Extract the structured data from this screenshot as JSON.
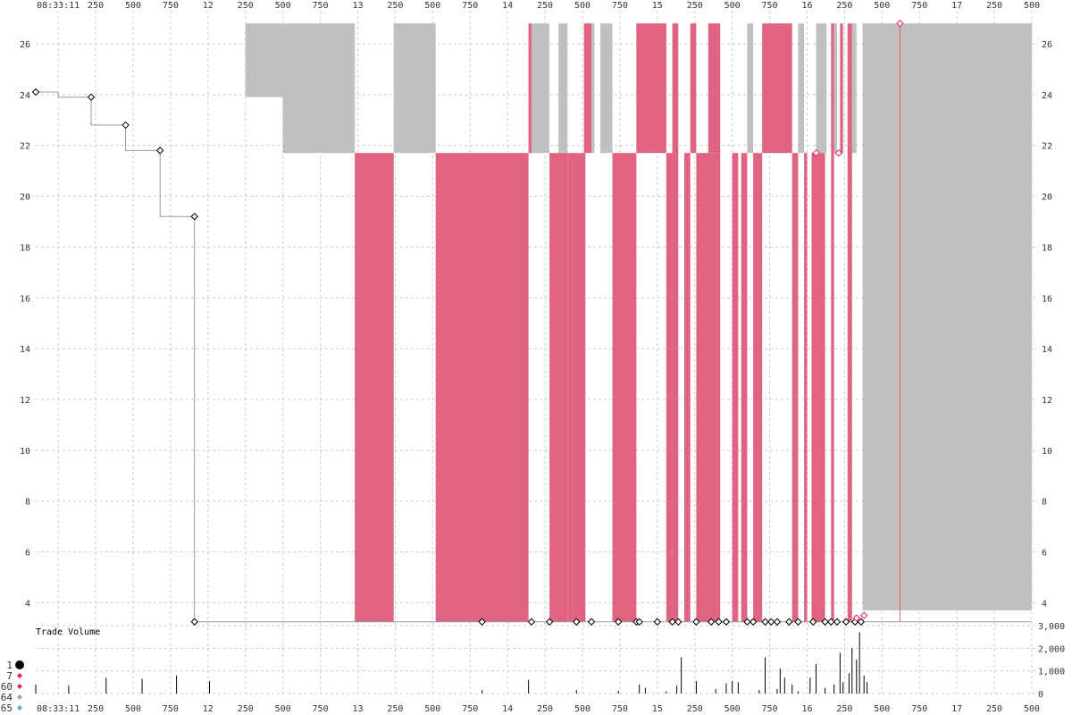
{
  "chart_data": {
    "type": "area",
    "colors": {
      "sell": "#e06382",
      "buy": "#c0c0c0",
      "trade_line": "#999999",
      "grid": "#cccccc"
    },
    "x_axis": {
      "start_label": "08:33:11",
      "ticks": [
        {
          "x": 0,
          "label": "08:33:11"
        },
        {
          "x": 250,
          "label": "250"
        },
        {
          "x": 500,
          "label": "500"
        },
        {
          "x": 750,
          "label": "750"
        },
        {
          "x": 1000,
          "label": "12"
        },
        {
          "x": 1250,
          "label": "250"
        },
        {
          "x": 1500,
          "label": "500"
        },
        {
          "x": 1750,
          "label": "750"
        },
        {
          "x": 2000,
          "label": "13"
        },
        {
          "x": 2250,
          "label": "250"
        },
        {
          "x": 2500,
          "label": "500"
        },
        {
          "x": 2750,
          "label": "750"
        },
        {
          "x": 3000,
          "label": "14"
        },
        {
          "x": 3250,
          "label": "250"
        },
        {
          "x": 3500,
          "label": "500"
        },
        {
          "x": 3750,
          "label": "750"
        },
        {
          "x": 4000,
          "label": "15"
        },
        {
          "x": 4250,
          "label": "250"
        },
        {
          "x": 4500,
          "label": "500"
        },
        {
          "x": 4750,
          "label": "750"
        },
        {
          "x": 5000,
          "label": "16"
        },
        {
          "x": 5250,
          "label": "250"
        },
        {
          "x": 5500,
          "label": "500"
        },
        {
          "x": 5750,
          "label": "750"
        },
        {
          "x": 6000,
          "label": "17"
        },
        {
          "x": 6250,
          "label": "250"
        },
        {
          "x": 6500,
          "label": "500"
        }
      ],
      "range": [
        -150,
        6530
      ]
    },
    "y_axis": {
      "ticks": [
        {
          "y": 4,
          "label": "4"
        },
        {
          "y": 6,
          "label": "6"
        },
        {
          "y": 8,
          "label": "8"
        },
        {
          "y": 10,
          "label": "10"
        },
        {
          "y": 12,
          "label": "12"
        },
        {
          "y": 14,
          "label": "14"
        },
        {
          "y": 16,
          "label": "16"
        },
        {
          "y": 18,
          "label": "18"
        },
        {
          "y": 20,
          "label": "20"
        },
        {
          "y": 22,
          "label": "22"
        },
        {
          "y": 24,
          "label": "24"
        },
        {
          "y": 26,
          "label": "26"
        }
      ],
      "range": [
        3.1,
        27.3
      ]
    },
    "volume_axis": {
      "title": "Trade Volume",
      "ticks": [
        {
          "v": 0,
          "label": "0"
        },
        {
          "v": 1000,
          "label": "1,000"
        },
        {
          "v": 2000,
          "label": "2,000"
        },
        {
          "v": 3000,
          "label": "3,000"
        }
      ],
      "range": [
        0,
        3000
      ]
    },
    "buy_bands": [
      {
        "x0": 1250,
        "x1": 1500,
        "y0": 23.9,
        "y1": 26.8
      },
      {
        "x0": 1500,
        "x1": 1980,
        "y0": 21.7,
        "y1": 26.8
      },
      {
        "x0": 2240,
        "x1": 2520,
        "y0": 21.7,
        "y1": 26.8
      },
      {
        "x0": 3140,
        "x1": 3280,
        "y0": 21.7,
        "y1": 26.8
      },
      {
        "x0": 3340,
        "x1": 3400,
        "y0": 21.7,
        "y1": 26.8
      },
      {
        "x0": 3560,
        "x1": 3580,
        "y0": 21.7,
        "y1": 26.8
      },
      {
        "x0": 3620,
        "x1": 3700,
        "y0": 21.7,
        "y1": 26.8
      },
      {
        "x0": 4020,
        "x1": 4060,
        "y0": 21.7,
        "y1": 26.8
      },
      {
        "x0": 4600,
        "x1": 4640,
        "y0": 21.7,
        "y1": 26.8
      },
      {
        "x0": 4940,
        "x1": 4980,
        "y0": 21.7,
        "y1": 26.8
      },
      {
        "x0": 5060,
        "x1": 5130,
        "y0": 21.7,
        "y1": 26.8
      },
      {
        "x0": 5180,
        "x1": 5200,
        "y0": 21.7,
        "y1": 26.8
      },
      {
        "x0": 5300,
        "x1": 5330,
        "y0": 21.7,
        "y1": 26.8
      },
      {
        "x0": 5370,
        "x1": 6500,
        "y0": 3.7,
        "y1": 26.8
      }
    ],
    "sell_bands": [
      {
        "x0": 1980,
        "x1": 2240,
        "y0": 3.25,
        "y1": 21.7
      },
      {
        "x0": 2520,
        "x1": 3140,
        "y0": 3.25,
        "y1": 21.7
      },
      {
        "x0": 3140,
        "x1": 3160,
        "y0": 21.7,
        "y1": 26.8
      },
      {
        "x0": 3280,
        "x1": 3400,
        "y0": 3.25,
        "y1": 21.7
      },
      {
        "x0": 3400,
        "x1": 3520,
        "y0": 3.25,
        "y1": 21.7
      },
      {
        "x0": 3510,
        "x1": 3560,
        "y0": 21.7,
        "y1": 26.8
      },
      {
        "x0": 3700,
        "x1": 3860,
        "y0": 3.25,
        "y1": 21.7
      },
      {
        "x0": 3860,
        "x1": 4060,
        "y0": 21.7,
        "y1": 26.8
      },
      {
        "x0": 4060,
        "x1": 4100,
        "y0": 3.25,
        "y1": 21.7
      },
      {
        "x0": 4100,
        "x1": 4140,
        "y0": 3.25,
        "y1": 26.8
      },
      {
        "x0": 4180,
        "x1": 4220,
        "y0": 3.25,
        "y1": 21.7
      },
      {
        "x0": 4220,
        "x1": 4260,
        "y0": 21.7,
        "y1": 26.8
      },
      {
        "x0": 4260,
        "x1": 4420,
        "y0": 3.25,
        "y1": 21.7
      },
      {
        "x0": 4340,
        "x1": 4420,
        "y0": 21.7,
        "y1": 26.8
      },
      {
        "x0": 4500,
        "x1": 4540,
        "y0": 3.25,
        "y1": 21.7
      },
      {
        "x0": 4560,
        "x1": 4600,
        "y0": 3.25,
        "y1": 21.7
      },
      {
        "x0": 4640,
        "x1": 4700,
        "y0": 3.25,
        "y1": 21.7
      },
      {
        "x0": 4700,
        "x1": 4900,
        "y0": 21.7,
        "y1": 26.8
      },
      {
        "x0": 4900,
        "x1": 4940,
        "y0": 3.25,
        "y1": 21.7
      },
      {
        "x0": 4980,
        "x1": 5000,
        "y0": 3.25,
        "y1": 21.7
      },
      {
        "x0": 5030,
        "x1": 5120,
        "y0": 3.25,
        "y1": 21.7
      },
      {
        "x0": 5160,
        "x1": 5180,
        "y0": 3.25,
        "y1": 26.8
      },
      {
        "x0": 5220,
        "x1": 5240,
        "y0": 21.7,
        "y1": 26.8
      },
      {
        "x0": 5270,
        "x1": 5300,
        "y0": 3.25,
        "y1": 26.8
      }
    ],
    "trade_line": [
      {
        "x": -150,
        "y": 24.1
      },
      {
        "x": 0,
        "y": 24.1
      },
      {
        "x": 0,
        "y": 23.9
      },
      {
        "x": 220,
        "y": 23.9
      },
      {
        "x": 220,
        "y": 22.8
      },
      {
        "x": 450,
        "y": 22.8
      },
      {
        "x": 450,
        "y": 21.8
      },
      {
        "x": 680,
        "y": 21.8
      },
      {
        "x": 680,
        "y": 19.2
      },
      {
        "x": 910,
        "y": 19.2
      },
      {
        "x": 910,
        "y": 3.25
      },
      {
        "x": 6500,
        "y": 3.25
      }
    ],
    "trade_points": [
      {
        "x": -150,
        "y": 24.1
      },
      {
        "x": 220,
        "y": 23.9
      },
      {
        "x": 450,
        "y": 22.8
      },
      {
        "x": 680,
        "y": 21.8
      },
      {
        "x": 910,
        "y": 19.2
      },
      {
        "x": 910,
        "y": 3.25
      },
      {
        "x": 2830,
        "y": 3.25
      },
      {
        "x": 3160,
        "y": 3.25
      },
      {
        "x": 3280,
        "y": 3.25
      },
      {
        "x": 3460,
        "y": 3.25
      },
      {
        "x": 3560,
        "y": 3.25
      },
      {
        "x": 3740,
        "y": 3.25
      },
      {
        "x": 3860,
        "y": 3.25
      },
      {
        "x": 3880,
        "y": 3.25
      },
      {
        "x": 4000,
        "y": 3.25
      },
      {
        "x": 4100,
        "y": 3.25
      },
      {
        "x": 4140,
        "y": 3.25
      },
      {
        "x": 4260,
        "y": 3.25
      },
      {
        "x": 4360,
        "y": 3.25
      },
      {
        "x": 4410,
        "y": 3.25
      },
      {
        "x": 4460,
        "y": 3.25
      },
      {
        "x": 4600,
        "y": 3.25
      },
      {
        "x": 4640,
        "y": 3.25
      },
      {
        "x": 4720,
        "y": 3.25
      },
      {
        "x": 4760,
        "y": 3.25
      },
      {
        "x": 4800,
        "y": 3.25
      },
      {
        "x": 4880,
        "y": 3.25
      },
      {
        "x": 4940,
        "y": 3.25
      },
      {
        "x": 5040,
        "y": 3.25
      },
      {
        "x": 5120,
        "y": 3.25
      },
      {
        "x": 5160,
        "y": 3.25
      },
      {
        "x": 5200,
        "y": 3.25
      },
      {
        "x": 5260,
        "y": 3.25
      },
      {
        "x": 5320,
        "y": 3.25
      },
      {
        "x": 5360,
        "y": 3.25
      }
    ],
    "sell_points": [
      {
        "x": 5060,
        "y": 21.7
      },
      {
        "x": 5210,
        "y": 21.7
      },
      {
        "x": 5620,
        "y": 26.8
      },
      {
        "x": 5330,
        "y": 3.4
      },
      {
        "x": 5380,
        "y": 3.5
      }
    ],
    "volume_bars": [
      {
        "x": -150,
        "v": 400
      },
      {
        "x": 70,
        "v": 350
      },
      {
        "x": 320,
        "v": 700
      },
      {
        "x": 560,
        "v": 650
      },
      {
        "x": 790,
        "v": 800
      },
      {
        "x": 1010,
        "v": 550
      },
      {
        "x": 2830,
        "v": 150
      },
      {
        "x": 3140,
        "v": 600
      },
      {
        "x": 3460,
        "v": 150
      },
      {
        "x": 3740,
        "v": 120
      },
      {
        "x": 3880,
        "v": 400
      },
      {
        "x": 3920,
        "v": 250
      },
      {
        "x": 4060,
        "v": 100
      },
      {
        "x": 4130,
        "v": 350
      },
      {
        "x": 4160,
        "v": 1600
      },
      {
        "x": 4260,
        "v": 550
      },
      {
        "x": 4390,
        "v": 200
      },
      {
        "x": 4460,
        "v": 450
      },
      {
        "x": 4500,
        "v": 550
      },
      {
        "x": 4540,
        "v": 500
      },
      {
        "x": 4680,
        "v": 150
      },
      {
        "x": 4720,
        "v": 1600
      },
      {
        "x": 4800,
        "v": 200
      },
      {
        "x": 4820,
        "v": 1100
      },
      {
        "x": 4850,
        "v": 700
      },
      {
        "x": 4900,
        "v": 400
      },
      {
        "x": 4940,
        "v": 100
      },
      {
        "x": 5020,
        "v": 700
      },
      {
        "x": 5060,
        "v": 1300
      },
      {
        "x": 5120,
        "v": 250
      },
      {
        "x": 5180,
        "v": 400
      },
      {
        "x": 5220,
        "v": 1800
      },
      {
        "x": 5240,
        "v": 500
      },
      {
        "x": 5280,
        "v": 900
      },
      {
        "x": 5300,
        "v": 2000
      },
      {
        "x": 5330,
        "v": 1500
      },
      {
        "x": 5350,
        "v": 2700
      },
      {
        "x": 5380,
        "v": 800
      },
      {
        "x": 5400,
        "v": 500
      }
    ],
    "legend": [
      {
        "label": "1",
        "color": "#000000",
        "size": "large"
      },
      {
        "label": "7",
        "color": "#e0245e",
        "size": "small"
      },
      {
        "label": "60",
        "color": "#e0247c",
        "size": "small"
      },
      {
        "label": "64",
        "color": "#a09cc0",
        "size": "small"
      },
      {
        "label": "65",
        "color": "#33bbbb",
        "size": "small"
      }
    ]
  }
}
